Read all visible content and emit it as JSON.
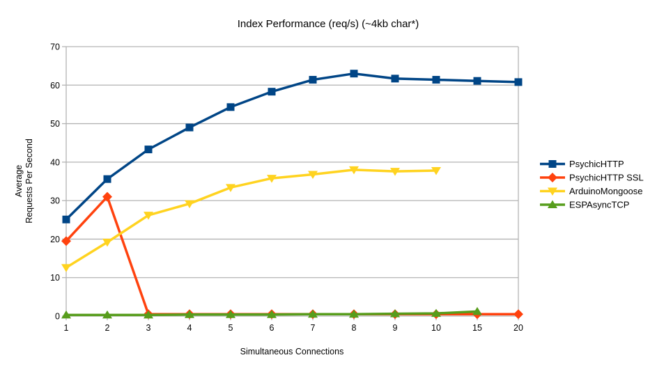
{
  "chart_data": {
    "type": "line",
    "title": "Index Performance (req/s) (~4kb char*)",
    "xlabel": "Simultaneous Connections",
    "ylabel_lines": [
      "Average",
      "Requests Per Second"
    ],
    "categories": [
      "1",
      "2",
      "3",
      "4",
      "5",
      "6",
      "7",
      "8",
      "9",
      "10",
      "15",
      "20"
    ],
    "y_axis": {
      "min": 0,
      "max": 70,
      "step": 10,
      "ticks": [
        0,
        10,
        20,
        30,
        40,
        50,
        60,
        70
      ]
    },
    "grid": true,
    "legend_position": "right",
    "series": [
      {
        "name": "PsychicHTTP",
        "color": "#004586",
        "marker": "square",
        "values": [
          25.1,
          35.6,
          43.3,
          49.0,
          54.3,
          58.3,
          61.4,
          63.0,
          61.7,
          61.4,
          61.1,
          60.8
        ]
      },
      {
        "name": "PsychicHTTP SSL",
        "color": "#FF420E",
        "marker": "diamond",
        "values": [
          19.5,
          31.0,
          0.5,
          0.5,
          0.5,
          0.5,
          0.5,
          0.5,
          0.5,
          0.5,
          0.5,
          0.5
        ]
      },
      {
        "name": "ArduinoMongoose",
        "color": "#FFD320",
        "marker": "triangle-down",
        "values": [
          12.6,
          19.2,
          26.2,
          29.2,
          33.4,
          35.8,
          36.8,
          38.0,
          37.6,
          37.8,
          null,
          null
        ]
      },
      {
        "name": "ESPAsyncTCP",
        "color": "#579D1C",
        "marker": "triangle-up",
        "values": [
          0.3,
          0.3,
          0.3,
          0.4,
          0.4,
          0.4,
          0.5,
          0.5,
          0.6,
          0.7,
          1.2,
          null
        ]
      }
    ],
    "colors": {
      "grid": "#b3b3b3",
      "axis": "#b3b3b3",
      "text": "#000000",
      "background": "#ffffff"
    }
  }
}
